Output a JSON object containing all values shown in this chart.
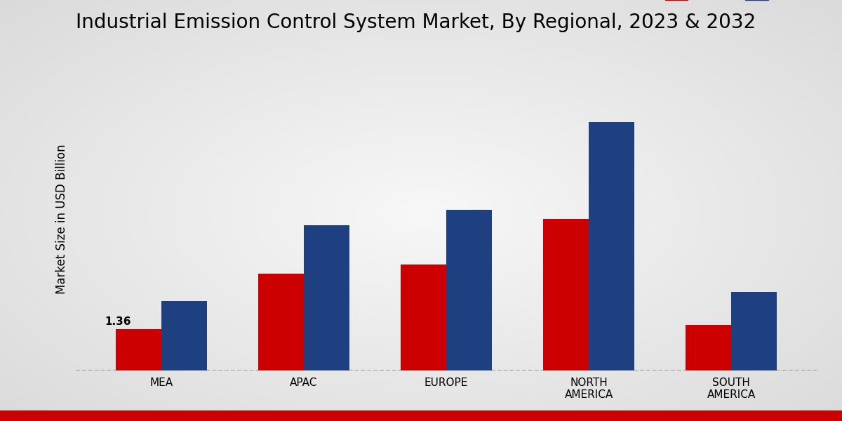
{
  "title": "Industrial Emission Control System Market, By Regional, 2023 & 2032",
  "ylabel": "Market Size in USD Billion",
  "categories": [
    "MEA",
    "APAC",
    "EUROPE",
    "NORTH\nAMERICA",
    "SOUTH\nAMERICA"
  ],
  "values_2023": [
    1.36,
    3.2,
    3.5,
    5.0,
    1.5
  ],
  "values_2032": [
    2.3,
    4.8,
    5.3,
    8.2,
    2.6
  ],
  "color_2023": "#cc0000",
  "color_2032": "#1e4080",
  "annotation_text": "1.36",
  "background_top": "#e0e0e0",
  "background_mid": "#f0f0f0",
  "title_fontsize": 20,
  "ylabel_fontsize": 12,
  "tick_fontsize": 11,
  "legend_fontsize": 13,
  "bar_width": 0.32,
  "ylim": [
    0,
    10.0
  ],
  "red_bottom_color": "#cc0000"
}
